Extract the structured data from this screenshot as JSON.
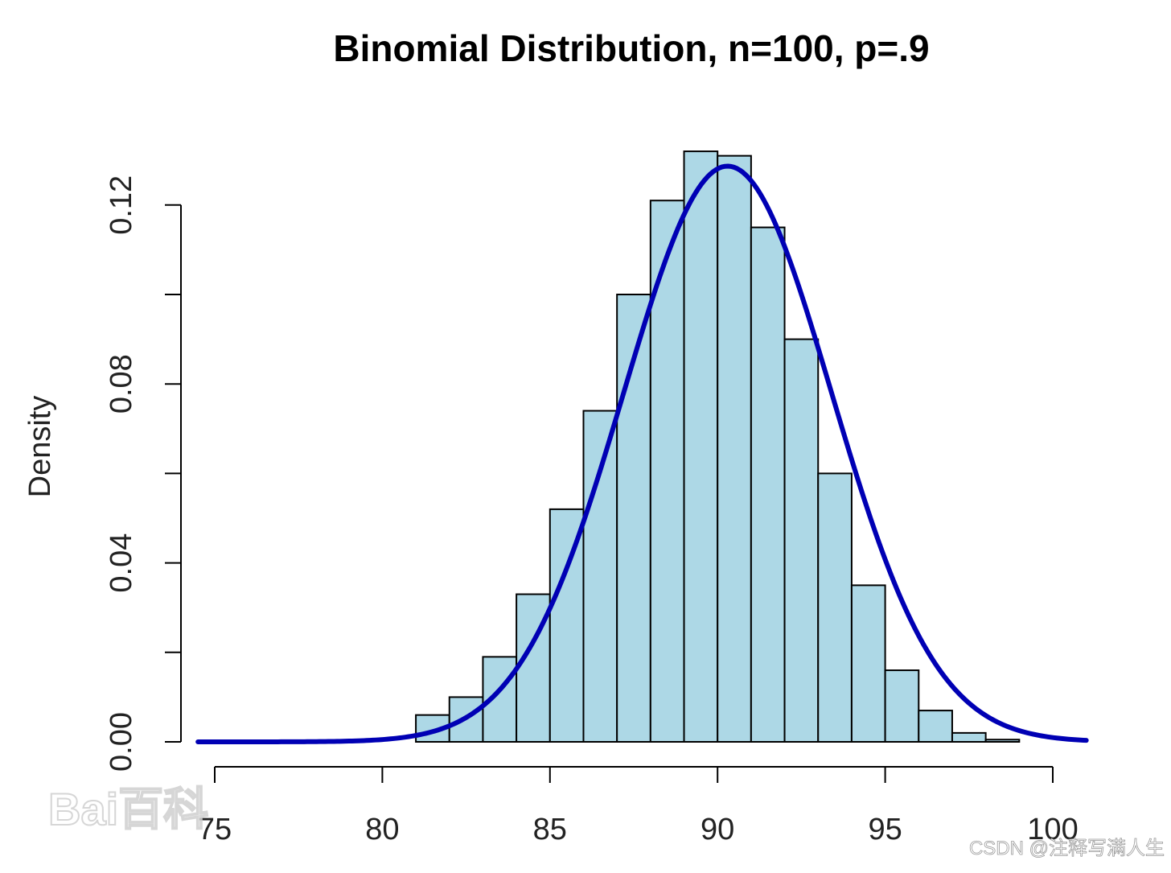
{
  "chart_data": {
    "type": "bar",
    "title": "Binomial Distribution, n=100, p=.9",
    "xlabel": "",
    "ylabel": "Density",
    "xlim": [
      74.5,
      101
    ],
    "ylim": [
      0,
      0.13
    ],
    "x_ticks": [
      75,
      80,
      85,
      90,
      95,
      100
    ],
    "y_ticks": [
      0.0,
      0.02,
      0.04,
      0.06,
      0.08,
      0.1,
      0.12
    ],
    "y_tick_labels": [
      "0.00",
      "",
      "0.04",
      "",
      "0.08",
      "",
      "0.12"
    ],
    "bin_width": 1,
    "bins": [
      {
        "start": 81,
        "end": 82,
        "value": 0.006
      },
      {
        "start": 82,
        "end": 83,
        "value": 0.01
      },
      {
        "start": 83,
        "end": 84,
        "value": 0.019
      },
      {
        "start": 84,
        "end": 85,
        "value": 0.033
      },
      {
        "start": 85,
        "end": 86,
        "value": 0.052
      },
      {
        "start": 86,
        "end": 87,
        "value": 0.074
      },
      {
        "start": 87,
        "end": 88,
        "value": 0.1
      },
      {
        "start": 88,
        "end": 89,
        "value": 0.121
      },
      {
        "start": 89,
        "end": 90,
        "value": 0.132
      },
      {
        "start": 90,
        "end": 91,
        "value": 0.131
      },
      {
        "start": 91,
        "end": 92,
        "value": 0.115
      },
      {
        "start": 92,
        "end": 93,
        "value": 0.09
      },
      {
        "start": 93,
        "end": 94,
        "value": 0.06
      },
      {
        "start": 94,
        "end": 95,
        "value": 0.035
      },
      {
        "start": 95,
        "end": 96,
        "value": 0.016
      },
      {
        "start": 96,
        "end": 97,
        "value": 0.007
      },
      {
        "start": 97,
        "end": 98,
        "value": 0.002
      },
      {
        "start": 98,
        "end": 99,
        "value": 0.0005
      }
    ],
    "curve": {
      "type": "normal_density",
      "mean": 90.3,
      "sd": 3.1,
      "x_range": [
        74.5,
        101
      ],
      "color": "#0000b4"
    },
    "bar_color": "#add8e6",
    "grid": false
  },
  "watermarks": {
    "baidu": "Bai百科",
    "csdn": "CSDN @注释写满人生"
  }
}
